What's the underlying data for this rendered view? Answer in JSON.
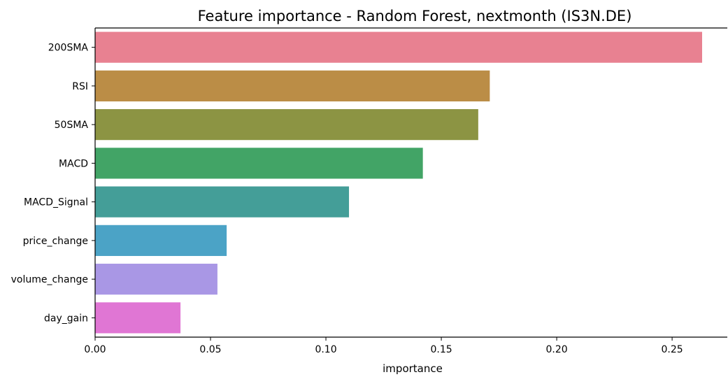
{
  "chart_data": {
    "type": "bar",
    "orientation": "horizontal",
    "title": "Feature importance - Random Forest, nextmonth (IS3N.DE)",
    "xlabel": "importance",
    "ylabel": "",
    "categories": [
      "200SMA",
      "RSI",
      "50SMA",
      "MACD",
      "MACD_Signal",
      "price_change",
      "volume_change",
      "day_gain"
    ],
    "values": [
      0.263,
      0.171,
      0.166,
      0.142,
      0.11,
      0.057,
      0.053,
      0.037
    ],
    "colors": [
      "#e88191",
      "#bb8d46",
      "#8c9443",
      "#42a466",
      "#449e98",
      "#4ba3c6",
      "#a997e5",
      "#e076d4"
    ],
    "xlim": [
      0,
      0.275
    ],
    "xticks": [
      0.0,
      0.05,
      0.1,
      0.15,
      0.2,
      0.25
    ],
    "xtick_labels": [
      "0.00",
      "0.05",
      "0.10",
      "0.15",
      "0.20",
      "0.25"
    ],
    "grid": false
  }
}
